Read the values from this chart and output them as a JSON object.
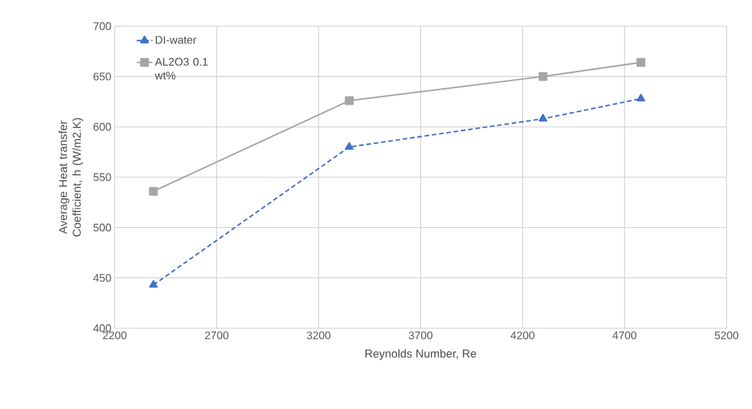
{
  "chart_data": {
    "type": "line",
    "xlabel": "Reynolds Number, Re",
    "ylabel": "Average Heat transfer Coefficient, h (W/m2.K)",
    "x": [
      2390,
      3350,
      4300,
      4780
    ],
    "series": [
      {
        "name": "DI-water",
        "color": "#4472c4",
        "marker": "triangle",
        "line_style": "dashed",
        "values": [
          443,
          580,
          608,
          628
        ]
      },
      {
        "name": "AL2O3 0.1 wt%",
        "color": "#a5a5a5",
        "marker": "square",
        "line_style": "solid",
        "values": [
          536,
          626,
          650,
          664
        ]
      }
    ],
    "xlim": [
      2200,
      5200
    ],
    "xticks": [
      2200,
      2700,
      3200,
      3700,
      4200,
      4700,
      5200
    ],
    "ylim": [
      400,
      700
    ],
    "yticks": [
      400,
      450,
      500,
      550,
      600,
      650,
      700
    ],
    "grid": true,
    "legend": "top left"
  }
}
